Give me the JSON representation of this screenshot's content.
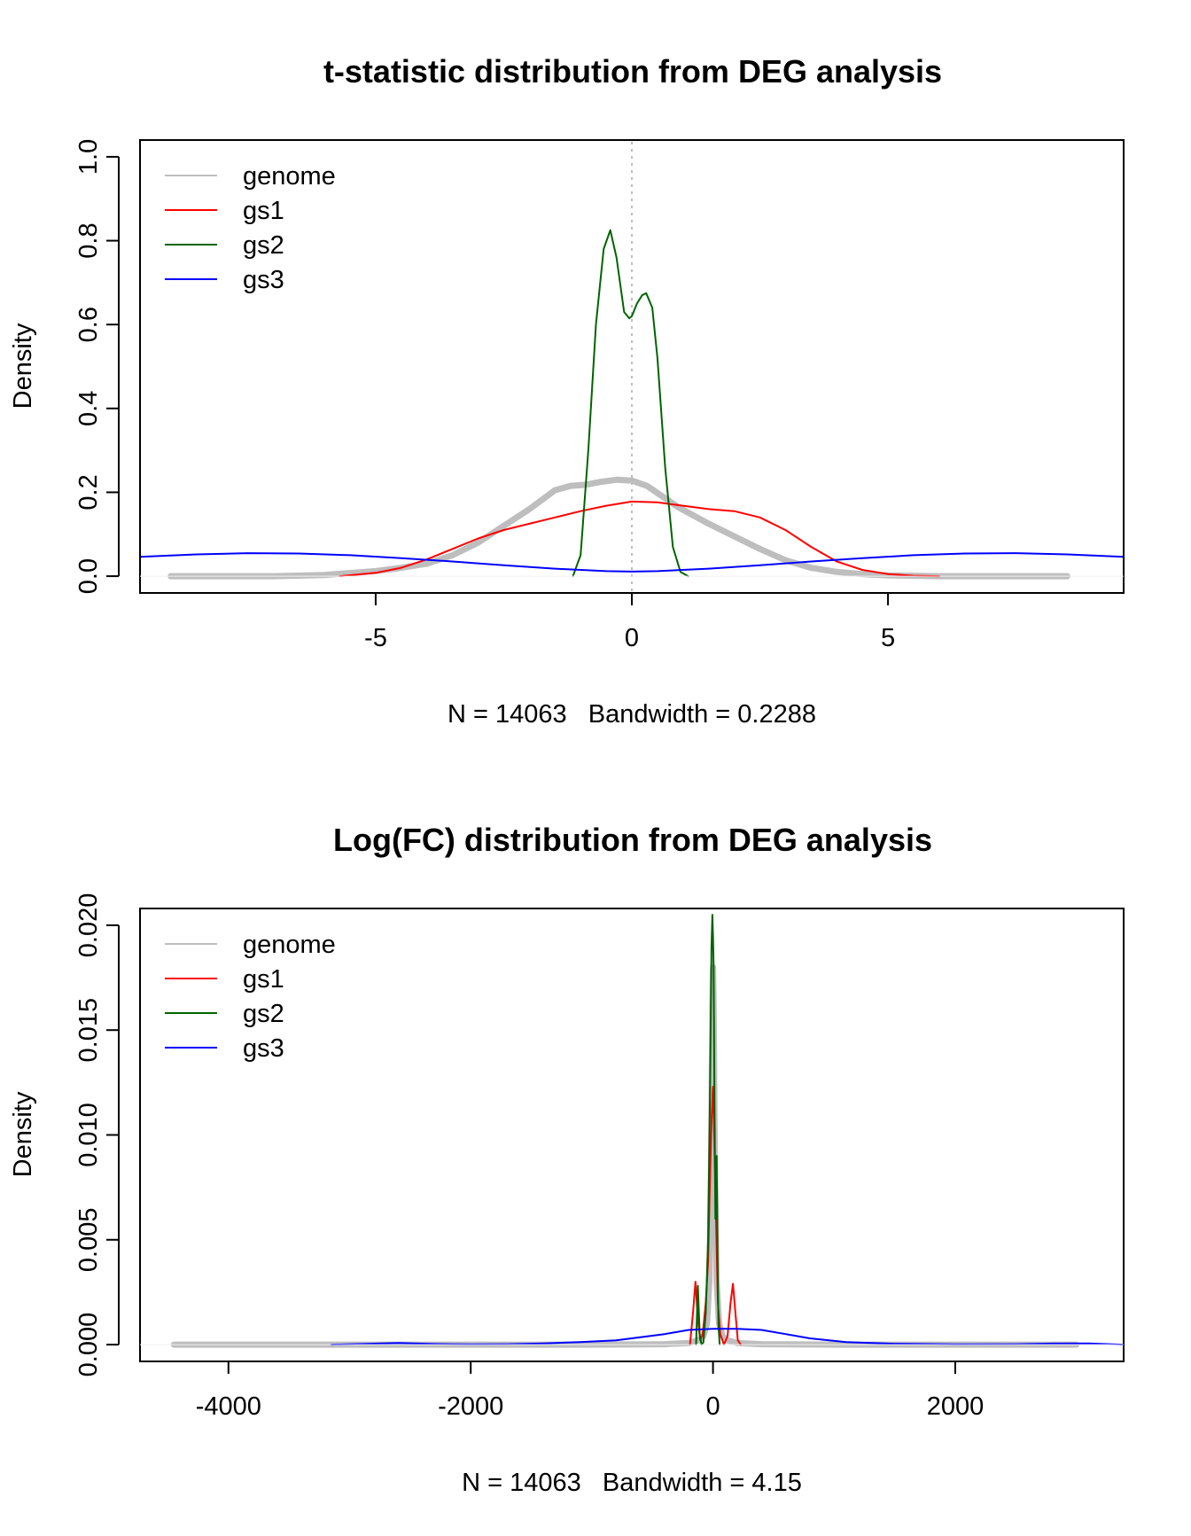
{
  "chart_data": [
    {
      "type": "line",
      "title": "t-statistic distribution from DEG analysis",
      "xlabel": "N = 14063   Bandwidth = 0.2288",
      "ylabel": "Density",
      "xlim": [
        -9.6,
        9.6
      ],
      "ylim": [
        -0.04,
        1.04
      ],
      "xticks": [
        -5,
        0,
        5
      ],
      "xtick_labels": [
        "-5",
        "0",
        "5"
      ],
      "yticks": [
        0.0,
        0.2,
        0.4,
        0.6,
        0.8,
        1.0
      ],
      "ytick_labels": [
        "0.0",
        "0.2",
        "0.4",
        "0.6",
        "0.8",
        "1.0"
      ],
      "vline_x": 0,
      "legend_position": "top-left",
      "series": [
        {
          "name": "genome",
          "color": "#bebebe",
          "x": [
            -9.0,
            -7.0,
            -6.0,
            -5.0,
            -4.5,
            -4.0,
            -3.5,
            -3.0,
            -2.5,
            -2.0,
            -1.5,
            -1.2,
            -0.9,
            -0.6,
            -0.3,
            0.0,
            0.3,
            0.6,
            0.9,
            1.2,
            1.5,
            2.0,
            2.5,
            3.0,
            3.5,
            4.0,
            4.5,
            5.0,
            6.0,
            7.0,
            8.5
          ],
          "y": [
            0.0,
            0.0,
            0.003,
            0.012,
            0.02,
            0.03,
            0.05,
            0.08,
            0.12,
            0.16,
            0.205,
            0.215,
            0.218,
            0.225,
            0.23,
            0.228,
            0.215,
            0.19,
            0.165,
            0.145,
            0.125,
            0.095,
            0.065,
            0.038,
            0.02,
            0.01,
            0.005,
            0.002,
            0.0,
            0.0,
            0.0
          ]
        },
        {
          "name": "gs1",
          "color": "#ff0000",
          "x": [
            -5.7,
            -5.0,
            -4.5,
            -4.0,
            -3.5,
            -3.0,
            -2.5,
            -2.0,
            -1.5,
            -1.0,
            -0.5,
            0.0,
            0.5,
            1.0,
            1.5,
            2.0,
            2.5,
            3.0,
            3.5,
            4.0,
            4.5,
            5.0,
            5.5,
            6.0
          ],
          "y": [
            0.0,
            0.008,
            0.02,
            0.04,
            0.065,
            0.09,
            0.11,
            0.125,
            0.14,
            0.155,
            0.168,
            0.178,
            0.176,
            0.168,
            0.16,
            0.155,
            0.14,
            0.11,
            0.07,
            0.035,
            0.015,
            0.005,
            0.001,
            0.0
          ]
        },
        {
          "name": "gs2",
          "color": "#006400",
          "x": [
            -1.15,
            -1.0,
            -0.85,
            -0.7,
            -0.55,
            -0.42,
            -0.3,
            -0.15,
            -0.05,
            0.0,
            0.1,
            0.2,
            0.28,
            0.4,
            0.5,
            0.65,
            0.8,
            0.95,
            1.1
          ],
          "y": [
            0.0,
            0.05,
            0.3,
            0.6,
            0.78,
            0.825,
            0.76,
            0.63,
            0.615,
            0.62,
            0.65,
            0.67,
            0.675,
            0.64,
            0.52,
            0.26,
            0.07,
            0.01,
            0.0
          ]
        },
        {
          "name": "gs3",
          "color": "#0000ff",
          "x": [
            -9.6,
            -8.5,
            -7.5,
            -6.5,
            -5.5,
            -4.5,
            -3.5,
            -2.5,
            -1.5,
            -0.5,
            0.0,
            0.5,
            1.5,
            2.5,
            3.5,
            4.5,
            5.5,
            6.5,
            7.5,
            8.5,
            9.6
          ],
          "y": [
            0.046,
            0.052,
            0.055,
            0.054,
            0.05,
            0.043,
            0.035,
            0.026,
            0.018,
            0.012,
            0.011,
            0.012,
            0.018,
            0.026,
            0.035,
            0.043,
            0.05,
            0.054,
            0.055,
            0.052,
            0.046
          ]
        }
      ]
    },
    {
      "type": "line",
      "title": "Log(FC) distribution from DEG analysis",
      "xlabel": "N = 14063   Bandwidth = 4.15",
      "ylabel": "Density",
      "xlim": [
        -4730,
        3390
      ],
      "ylim": [
        -0.0008,
        0.0208
      ],
      "xticks": [
        -4000,
        -2000,
        0,
        2000
      ],
      "xtick_labels": [
        "-4000",
        "-2000",
        "0",
        "2000"
      ],
      "yticks": [
        0.0,
        0.005,
        0.01,
        0.015,
        0.02
      ],
      "ytick_labels": [
        "0.000",
        "0.005",
        "0.010",
        "0.015",
        "0.020"
      ],
      "legend_position": "top-left",
      "series": [
        {
          "name": "genome",
          "color": "#bebebe",
          "x": [
            -4450,
            -3000,
            -1000,
            -400,
            -200,
            -120,
            -80,
            -50,
            -30,
            -15,
            -5,
            0,
            5,
            15,
            30,
            50,
            80,
            120,
            200,
            400,
            1000,
            3000
          ],
          "y": [
            0.0,
            0.0,
            0.0,
            2e-05,
            8e-05,
            0.0002,
            0.0004,
            0.001,
            0.003,
            0.009,
            0.016,
            0.018,
            0.016,
            0.009,
            0.003,
            0.001,
            0.0004,
            0.0002,
            8e-05,
            2e-05,
            0.0,
            0.0
          ]
        },
        {
          "name": "gs1",
          "color": "#ff0000",
          "x": [
            -190,
            -165,
            -145,
            -125,
            -105,
            -85,
            -60,
            -40,
            -25,
            -10,
            0,
            10,
            25,
            40,
            60,
            90,
            120,
            145,
            165,
            185,
            205,
            230
          ],
          "y": [
            0.0,
            0.0015,
            0.003,
            0.0012,
            0.0002,
            0.0005,
            0.002,
            0.004,
            0.008,
            0.011,
            0.0123,
            0.01,
            0.006,
            0.002,
            0.0005,
            0.0,
            0.0004,
            0.002,
            0.0029,
            0.0015,
            0.0002,
            0.0
          ]
        },
        {
          "name": "gs2",
          "color": "#006400",
          "x": [
            -140,
            -125,
            -110,
            -95,
            -80,
            -60,
            -40,
            -25,
            -12,
            -5,
            0,
            5,
            12,
            20,
            30,
            38,
            45,
            55
          ],
          "y": [
            0.0,
            0.0028,
            0.0005,
            0.0,
            0.0001,
            0.0015,
            0.005,
            0.012,
            0.019,
            0.0205,
            0.0195,
            0.018,
            0.012,
            0.006,
            0.009,
            0.004,
            0.001,
            0.0
          ]
        },
        {
          "name": "gs3",
          "color": "#0000ff",
          "x": [
            -3150,
            -2900,
            -2600,
            -2300,
            -2000,
            -1700,
            -1400,
            -1100,
            -800,
            -600,
            -400,
            -200,
            0,
            200,
            400,
            600,
            800,
            1100,
            1500,
            2000,
            2500,
            2800,
            3100,
            3390
          ],
          "y": [
            0.0,
            3e-05,
            8e-05,
            3e-05,
            1e-05,
            2e-05,
            6e-05,
            0.00012,
            0.0002,
            0.00035,
            0.0005,
            0.0007,
            0.00075,
            0.00075,
            0.0007,
            0.0005,
            0.0003,
            0.00012,
            4e-05,
            1e-05,
            2e-05,
            5e-05,
            6e-05,
            0.0
          ]
        }
      ]
    }
  ]
}
